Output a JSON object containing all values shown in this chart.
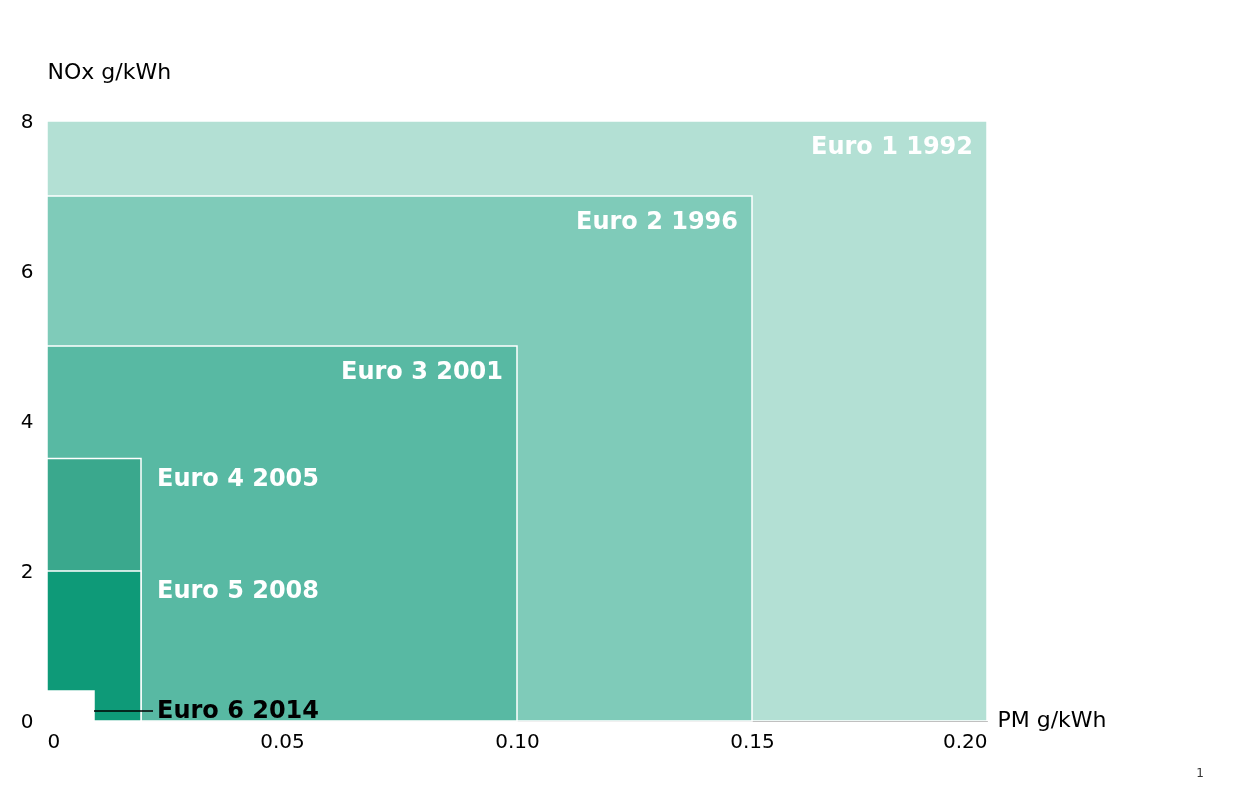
{
  "chart_data": {
    "type": "area",
    "xlabel": "PM g/kWh",
    "ylabel": "NOx g/kWh",
    "xlim": [
      0,
      0.2
    ],
    "ylim": [
      0,
      8
    ],
    "xticks": [
      0,
      0.05,
      {
        "value": 0.1,
        "label": "0.10"
      },
      0.15,
      {
        "value": 0.2,
        "label": "0.20"
      }
    ],
    "yticks": [
      0,
      2,
      4,
      6,
      8
    ],
    "series": [
      {
        "name": "Euro 1  1992",
        "color": "#b3e0d4",
        "x": [
          0,
          0.2
        ],
        "values": [
          8,
          8
        ]
      },
      {
        "name": "Euro 2  1996",
        "color": "#7fcbb9",
        "x": [
          0,
          0.15
        ],
        "values": [
          7,
          7
        ]
      },
      {
        "name": "Euro 3  2001",
        "color": "#58b9a3",
        "x": [
          0,
          0.1
        ],
        "values": [
          5,
          5
        ]
      },
      {
        "name": "Euro 4  2005",
        "color": "#3aa88d",
        "x": [
          0,
          0.02
        ],
        "values": [
          3.5,
          3.5
        ]
      },
      {
        "name": "Euro 5  2008",
        "color": "#0e9a78",
        "x": [
          0,
          0.02
        ],
        "values": [
          2,
          2
        ]
      },
      {
        "name": "Euro 6  2014",
        "color": "#ffffff",
        "x": [
          0,
          0.01
        ],
        "values": [
          0.4,
          0.4
        ]
      }
    ],
    "annotations": [
      "1"
    ]
  }
}
